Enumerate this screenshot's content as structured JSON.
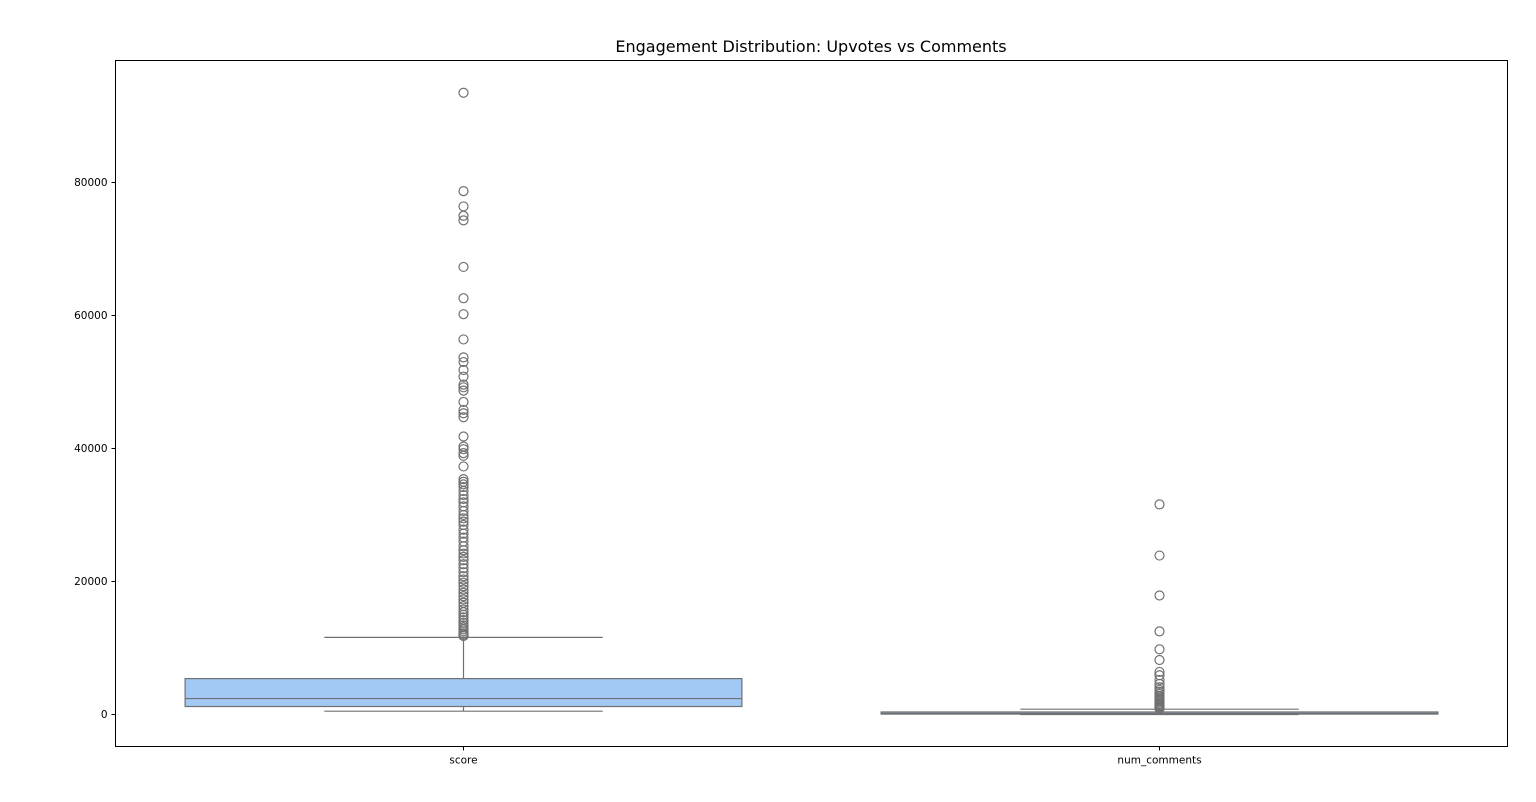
{
  "chart_data": {
    "type": "box",
    "title": "Engagement Distribution: Upvotes vs Comments",
    "xlabel": "",
    "ylabel": "",
    "categories": [
      "score",
      "num_comments"
    ],
    "ylim": [
      -4800,
      98000
    ],
    "yticks": [
      0,
      20000,
      40000,
      60000,
      80000
    ],
    "grid": false,
    "colors": {
      "box_fill": "#a1c9f4",
      "line": "#707070",
      "frame": "#000000"
    },
    "boxes": [
      {
        "category": "score",
        "min": 500,
        "q1": 1200,
        "median": 2400,
        "q3": 5400,
        "max": 11600,
        "outliers": [
          93500,
          78700,
          76400,
          75000,
          74300,
          67300,
          62600,
          60200,
          56400,
          53700,
          53000,
          51800,
          50800,
          49600,
          49200,
          48700,
          47000,
          45800,
          45300,
          44700,
          41800,
          40300,
          39900,
          39300,
          38900,
          37300,
          35400,
          35000,
          34600,
          34200,
          33600,
          33000,
          32400,
          31900,
          31300,
          30600,
          30000,
          29500,
          29000,
          28500,
          27800,
          27200,
          26600,
          26000,
          25300,
          24700,
          24200,
          23700,
          23200,
          22600,
          22000,
          21400,
          20800,
          20300,
          19800,
          19300,
          18800,
          18300,
          17800,
          17300,
          16800,
          16300,
          15800,
          15400,
          15000,
          14600,
          14200,
          13800,
          13400,
          13100,
          12800,
          12500,
          12200,
          12000,
          11800
        ]
      },
      {
        "category": "num_comments",
        "min": 0,
        "q1": 60,
        "median": 170,
        "q3": 380,
        "max": 800,
        "outliers": [
          31600,
          23900,
          17900,
          12500,
          9800,
          8200,
          6400,
          5900,
          5200,
          4600,
          4100,
          3700,
          3400,
          3100,
          2800,
          2600,
          2400,
          2200,
          2000,
          1800,
          1600,
          1400,
          1250,
          1100,
          980,
          880
        ]
      }
    ]
  }
}
